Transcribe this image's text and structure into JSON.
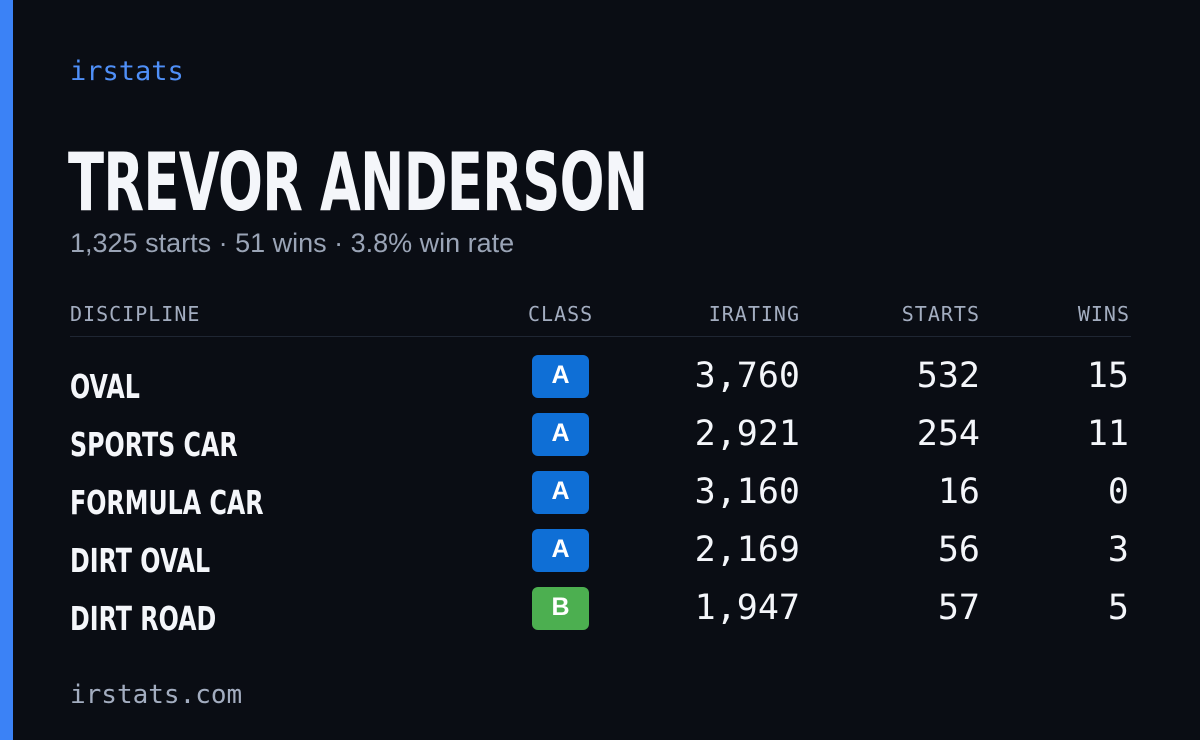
{
  "brand": "irstats",
  "driver": {
    "name": "TREVOR ANDERSON",
    "summary": "1,325 starts · 51 wins · 3.8% win rate"
  },
  "table": {
    "headers": {
      "discipline": "DISCIPLINE",
      "class": "CLASS",
      "irating": "IRATING",
      "starts": "STARTS",
      "wins": "WINS"
    },
    "rows": [
      {
        "discipline": "OVAL",
        "class": "A",
        "irating": "3,760",
        "starts": "532",
        "wins": "15"
      },
      {
        "discipline": "SPORTS CAR",
        "class": "A",
        "irating": "2,921",
        "starts": "254",
        "wins": "11"
      },
      {
        "discipline": "FORMULA CAR",
        "class": "A",
        "irating": "3,160",
        "starts": "16",
        "wins": "0"
      },
      {
        "discipline": "DIRT OVAL",
        "class": "A",
        "irating": "2,169",
        "starts": "56",
        "wins": "3"
      },
      {
        "discipline": "DIRT ROAD",
        "class": "B",
        "irating": "1,947",
        "starts": "57",
        "wins": "5"
      }
    ]
  },
  "footer": "irstats.com",
  "colors": {
    "background": "#0a0d14",
    "accent": "#3b82f6",
    "class_a": "#0f6fd6",
    "class_b": "#4caf50"
  }
}
